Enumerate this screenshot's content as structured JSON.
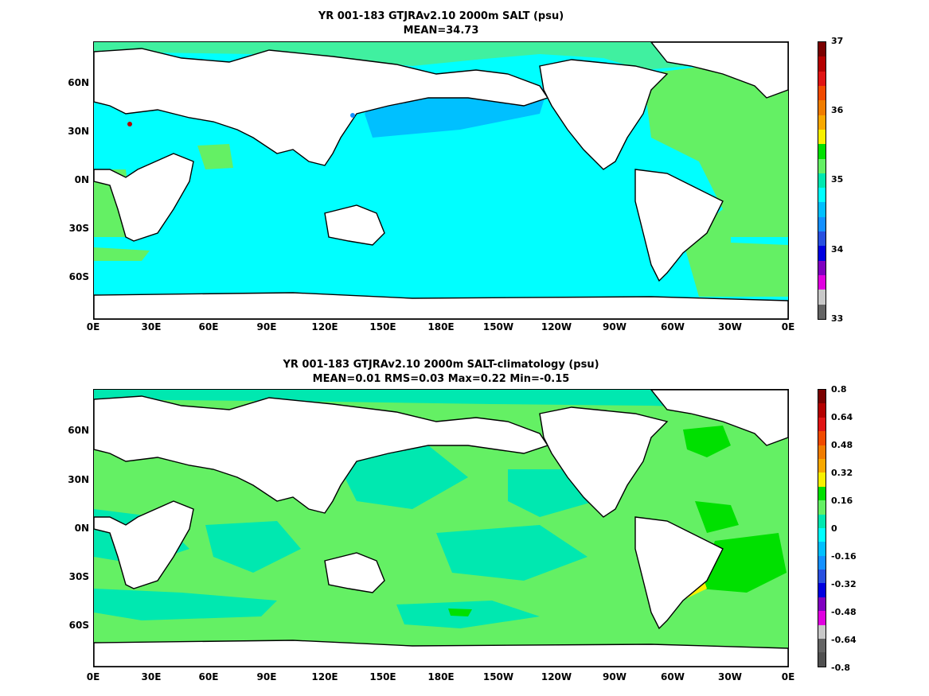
{
  "top": {
    "title_line1": "YR 001-183 GTJRAv2.10 2000m SALT (psu)",
    "title_line2": "MEAN=34.73",
    "colorbar": {
      "labels": [
        "37",
        "36",
        "35",
        "34",
        "33"
      ],
      "colors": [
        "#7a0000",
        "#b40000",
        "#e01414",
        "#f04a00",
        "#f07c00",
        "#f8a800",
        "#f8f000",
        "#00e000",
        "#64f064",
        "#00e8b0",
        "#00ffff",
        "#00c0ff",
        "#1490ff",
        "#2850e0",
        "#0000e0",
        "#8000c0",
        "#e000e0",
        "#c8c8c8",
        "#646464"
      ]
    },
    "fills": {
      "ocean_main": "#00ffff",
      "ocean_fresh": "#00c0ff",
      "atlantic": "#64f064",
      "north_band": "#40f0a0",
      "fresh_patch": "#1490ff",
      "med": "#b40000"
    }
  },
  "bottom": {
    "title_line1": "YR 001-183 GTJRAv2.10 2000m SALT-climatology (psu)",
    "title_line2": "MEAN=0.01   RMS=0.03   Max=0.22   Min=-0.15",
    "colorbar": {
      "labels": [
        "0.8",
        "0.64",
        "0.48",
        "0.32",
        "0.16",
        "0",
        "-0.16",
        "-0.32",
        "-0.48",
        "-0.64",
        "-0.8"
      ],
      "colors": [
        "#7a0000",
        "#b40000",
        "#e01414",
        "#f04a00",
        "#f07c00",
        "#f8a800",
        "#f8f000",
        "#00e000",
        "#64f064",
        "#00e8b0",
        "#00ffff",
        "#00c0ff",
        "#1490ff",
        "#2850e0",
        "#0000e0",
        "#8000c0",
        "#e000e0",
        "#c8c8c8",
        "#646464",
        "#505050"
      ]
    },
    "fills": {
      "base": "#64f064",
      "cool": "#00e8b0",
      "warm": "#00e000",
      "hot": "#f8f000"
    }
  },
  "axes": {
    "lat_labels": [
      "60N",
      "30N",
      "0N",
      "30S",
      "60S"
    ],
    "lon_labels": [
      "0E",
      "30E",
      "60E",
      "90E",
      "120E",
      "150E",
      "180E",
      "150W",
      "120W",
      "90W",
      "60W",
      "30W",
      "0E"
    ]
  },
  "land_color": "#ffffff",
  "coast_color": "#000000"
}
